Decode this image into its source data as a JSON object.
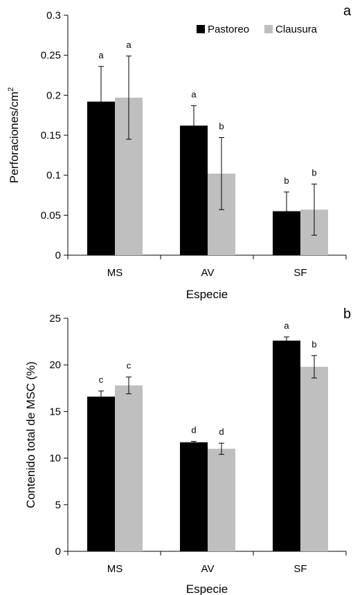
{
  "chart_data": [
    {
      "type": "bar",
      "panel_letter": "a",
      "categories": [
        "MS",
        "AV",
        "SF"
      ],
      "series": [
        {
          "name": "Pastoreo",
          "color": "#000000",
          "values": [
            0.192,
            0.162,
            0.055
          ],
          "errors": [
            0.044,
            0.025,
            0.024
          ],
          "letters": [
            "a",
            "a",
            "b"
          ]
        },
        {
          "name": "Clausura",
          "color": "#bfbfbf",
          "values": [
            0.197,
            0.102,
            0.057
          ],
          "errors": [
            0.052,
            0.045,
            0.032
          ],
          "letters": [
            "a",
            "b",
            "b"
          ]
        }
      ],
      "xlabel": "Especie",
      "ylabel": "Perforaciones/cm",
      "ylabel_sup": "2",
      "ylim": [
        0,
        0.3
      ],
      "yticks": [
        0,
        0.05,
        0.1,
        0.15,
        0.2,
        0.25,
        0.3
      ],
      "ytick_labels": [
        "0",
        "0.05",
        "0.1",
        "0.15",
        "0.2",
        "0.25",
        "0.3"
      ],
      "legend": "top-right",
      "grid": false
    },
    {
      "type": "bar",
      "panel_letter": "b",
      "categories": [
        "MS",
        "AV",
        "SF"
      ],
      "series": [
        {
          "name": "Pastoreo",
          "color": "#000000",
          "values": [
            16.6,
            11.7,
            22.6
          ],
          "errors": [
            0.6,
            0.1,
            0.4
          ],
          "letters": [
            "c",
            "d",
            "a"
          ]
        },
        {
          "name": "Clausura",
          "color": "#bfbfbf",
          "values": [
            17.8,
            11.0,
            19.8
          ],
          "errors": [
            0.9,
            0.6,
            1.2
          ],
          "letters": [
            "c",
            "d",
            "b"
          ]
        }
      ],
      "xlabel": "Especie",
      "ylabel": "Contenido total de MSC (%)",
      "ylim": [
        0,
        25
      ],
      "yticks": [
        0,
        5,
        10,
        15,
        20,
        25
      ],
      "ytick_labels": [
        "0",
        "5",
        "10",
        "15",
        "20",
        "25"
      ],
      "legend": "none",
      "grid": false
    }
  ]
}
